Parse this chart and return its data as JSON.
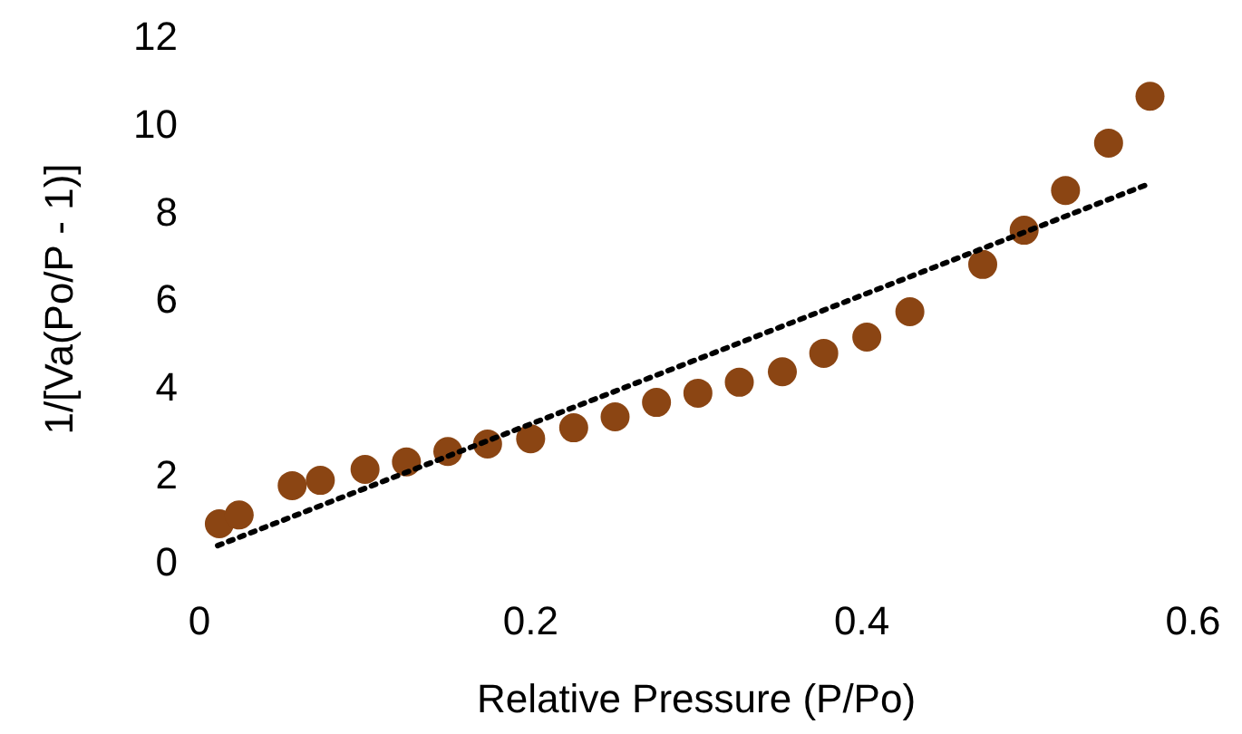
{
  "chart_data": {
    "type": "scatter",
    "xlabel": "Relative Pressure (P/Po)",
    "ylabel": "1/[Va(Po/P - 1)]",
    "xlim": [
      0,
      0.6
    ],
    "ylim": [
      0,
      12
    ],
    "xticks": [
      0,
      0.2,
      0.4,
      0.6
    ],
    "yticks": [
      0,
      2,
      4,
      6,
      8,
      10,
      12
    ],
    "grid": false,
    "series": [
      {
        "marker": "circle",
        "color": "#8b4513",
        "x": [
          0.012,
          0.024,
          0.056,
          0.073,
          0.1,
          0.125,
          0.15,
          0.174,
          0.2,
          0.226,
          0.251,
          0.276,
          0.301,
          0.326,
          0.352,
          0.377,
          0.403,
          0.429,
          0.473,
          0.498,
          0.523,
          0.549,
          0.574
        ],
        "values": [
          0.87,
          1.07,
          1.74,
          1.86,
          2.11,
          2.28,
          2.52,
          2.69,
          2.81,
          3.06,
          3.31,
          3.64,
          3.85,
          4.1,
          4.34,
          4.76,
          5.13,
          5.71,
          6.79,
          7.57,
          8.48,
          9.56,
          10.63
        ]
      },
      {
        "type": "line",
        "color": "#000000",
        "line_style": "dotted",
        "x": [
          0.011,
          0.572
        ],
        "values": [
          0.37,
          8.61
        ]
      }
    ]
  }
}
